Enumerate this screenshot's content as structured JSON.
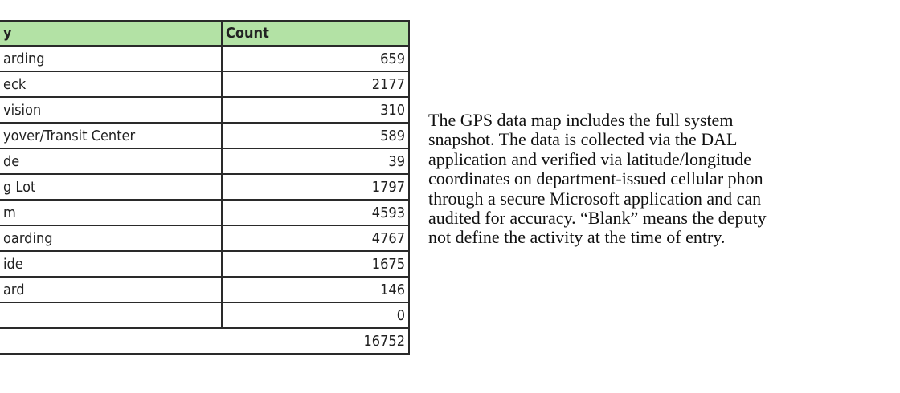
{
  "table": {
    "headers": [
      "y",
      "Count"
    ],
    "rows": [
      {
        "label": "arding",
        "count": "659"
      },
      {
        "label": "eck",
        "count": "2177"
      },
      {
        "label": "vision",
        "count": "310"
      },
      {
        "label": "yover/Transit Center",
        "count": "589"
      },
      {
        "label": "de",
        "count": "39"
      },
      {
        "label": "g Lot",
        "count": "1797"
      },
      {
        "label": "m",
        "count": "4593"
      },
      {
        "label": "oarding",
        "count": "4767"
      },
      {
        "label": "ide",
        "count": "1675"
      },
      {
        "label": "ard",
        "count": "146"
      },
      {
        "label": "",
        "count": "0"
      }
    ],
    "total": "16752",
    "header_color": "#b3e2a5"
  },
  "paragraph": {
    "lines": [
      "The GPS data map includes the full system",
      "snapshot. The data is collected via the DAL",
      "application and verified via latitude/longitude",
      "coordinates on department-issued cellular phon",
      "through a secure Microsoft application and can",
      "audited for accuracy. “Blank” means the deputy",
      "not define the activity at the time of entry."
    ]
  }
}
